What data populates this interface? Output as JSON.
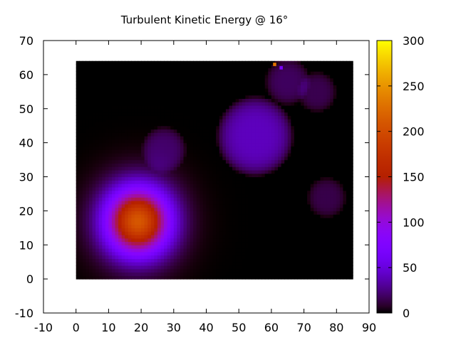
{
  "chart_data": {
    "type": "heatmap",
    "title": "Turbulent Kinetic Energy @ 16°",
    "xlabel": "",
    "ylabel": "",
    "xlim": [
      -10,
      90
    ],
    "ylim": [
      -10,
      70
    ],
    "x_ticks": [
      "-10",
      "0",
      "10",
      "20",
      "30",
      "40",
      "50",
      "60",
      "70",
      "80",
      "90"
    ],
    "y_ticks": [
      "-10",
      "0",
      "10",
      "20",
      "30",
      "40",
      "50",
      "60",
      "70"
    ],
    "data_extent": {
      "x": [
        0,
        85
      ],
      "y": [
        0,
        64
      ]
    },
    "colorbar": {
      "range": [
        0,
        300
      ],
      "ticks": [
        "0",
        "50",
        "100",
        "150",
        "200",
        "250",
        "300"
      ],
      "palette": "gnuplot black-blue-purple-red-orange-yellow"
    },
    "features": [
      {
        "shape": "gaussian",
        "x": 19,
        "y": 17,
        "peak": 210,
        "sigma": 7
      },
      {
        "shape": "blob",
        "x": 55,
        "y": 42,
        "peak": 40,
        "radius": 12
      },
      {
        "shape": "blob",
        "x": 27,
        "y": 38,
        "peak": 20,
        "radius": 7
      },
      {
        "shape": "blob",
        "x": 65,
        "y": 58,
        "peak": 18,
        "radius": 7
      },
      {
        "shape": "blob",
        "x": 74,
        "y": 55,
        "peak": 15,
        "radius": 6
      },
      {
        "shape": "blob",
        "x": 77,
        "y": 24,
        "peak": 14,
        "radius": 6
      },
      {
        "shape": "spot",
        "x": 61,
        "y": 63,
        "value": 230
      },
      {
        "shape": "spot",
        "x": 63,
        "y": 62,
        "value": 70
      }
    ]
  }
}
